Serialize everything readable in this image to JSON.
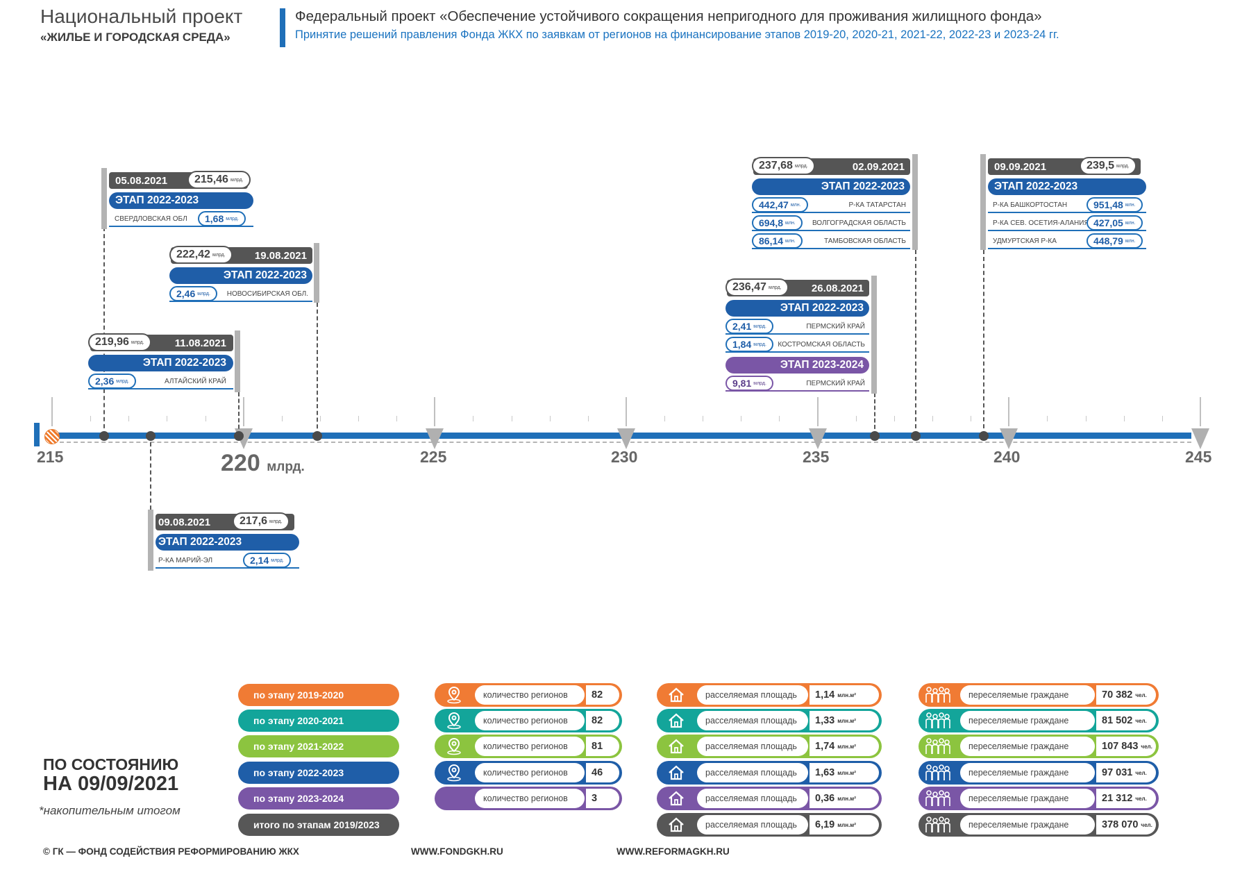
{
  "header": {
    "left_title": "Национальный проект",
    "left_subtitle": "«ЖИЛЬЕ И ГОРОДСКАЯ СРЕДА»",
    "right_title": "Федеральный проект «Обеспечение устойчивого сокращения  непригодного для проживания жилищного фонда»",
    "right_subtitle": "Принятие  решений правления Фонда ЖКХ по заявкам  от регионов на финансирование этапов 2019-20, 2020-21, 2021-22, 2022-23 и 2023-24 гг."
  },
  "axis": {
    "labels": [
      "215",
      "225",
      "230",
      "235",
      "240",
      "245"
    ],
    "big_label_value": "220",
    "big_label_unit": "млрд."
  },
  "events": {
    "e1": {
      "date": "05.08.2021",
      "amount": "215,46",
      "unit": "млрд.",
      "stage": "ЭТАП 2022-2023",
      "rows": [
        {
          "region": "СВЕРДЛОВСКАЯ ОБЛ",
          "value": "1,68",
          "unit": "млрд."
        }
      ]
    },
    "e2": {
      "date": "09.08.2021",
      "amount": "217,6",
      "unit": "млрд.",
      "stage": "ЭТАП 2022-2023",
      "rows": [
        {
          "region": "Р-КА МАРИЙ-ЭЛ",
          "value": "2,14",
          "unit": "млрд."
        }
      ]
    },
    "e3": {
      "date": "11.08.2021",
      "amount": "219,96",
      "unit": "млрд.",
      "stage": "ЭТАП 2022-2023",
      "rows": [
        {
          "region": "АЛТАЙСКИЙ КРАЙ",
          "value": "2,36",
          "unit": "млрд."
        }
      ]
    },
    "e4": {
      "date": "19.08.2021",
      "amount": "222,42",
      "unit": "млрд.",
      "stage": "ЭТАП 2022-2023",
      "rows": [
        {
          "region": "НОВОСИБИРСКАЯ ОБЛ.",
          "value": "2,46",
          "unit": "млрд."
        }
      ]
    },
    "e5": {
      "date": "26.08.2021",
      "amount": "236,47",
      "unit": "млрд.",
      "stage": "ЭТАП 2022-2023",
      "stage2": "ЭТАП 2023-2024",
      "rows": [
        {
          "region": "ПЕРМСКИЙ КРАЙ",
          "value": "2,41",
          "unit": "млрд."
        },
        {
          "region": "КОСТРОМСКАЯ ОБЛАСТЬ",
          "value": "1,84",
          "unit": "млрд."
        }
      ],
      "rows2": [
        {
          "region": "ПЕРМСКИЙ КРАЙ",
          "value": "9,81",
          "unit": "млрд."
        }
      ]
    },
    "e6": {
      "date": "02.09.2021",
      "amount": "237,68",
      "unit": "млрд.",
      "stage": "ЭТАП 2022-2023",
      "rows": [
        {
          "region": "Р-КА ТАТАРСТАН",
          "value": "442,47",
          "unit": "млн."
        },
        {
          "region": "ВОЛГОГРАДСКАЯ ОБЛАСТЬ",
          "value": "694,8",
          "unit": "млн."
        },
        {
          "region": "ТАМБОВСКАЯ ОБЛАСТЬ",
          "value": "86,14",
          "unit": "млн."
        }
      ]
    },
    "e7": {
      "date": "09.09.2021",
      "amount": "239,5",
      "unit": "млрд.",
      "stage": "ЭТАП 2022-2023",
      "rows": [
        {
          "region": "Р-КА БАШКОРТОСТАН",
          "value": "951,48",
          "unit": "млн."
        },
        {
          "region": "Р-КА СЕВ. ОСЕТИЯ-АЛАНИЯ",
          "value": "427,05",
          "unit": "млн."
        },
        {
          "region": "УДМУРТСКАЯ Р-КА",
          "value": "448,79",
          "unit": "млн."
        }
      ]
    }
  },
  "stats": {
    "labels": {
      "regions": "количество регионов",
      "area": "расселяемая площадь",
      "citizens": "переселяемые граждане",
      "area_unit": "млн.м²",
      "people_unit": "чел."
    },
    "colors": [
      "#f07b34",
      "#13a59a",
      "#8cc43f",
      "#1f5ea8",
      "#7a56a6",
      "#575757"
    ],
    "stages": [
      {
        "label": "по этапу 2019-2020",
        "regions": "82",
        "area": "1,14",
        "citizens": "70 382"
      },
      {
        "label": "по этапу 2020-2021",
        "regions": "82",
        "area": "1,33",
        "citizens": "81 502"
      },
      {
        "label": "по этапу 2021-2022",
        "regions": "81",
        "area": "1,74",
        "citizens": "107 843"
      },
      {
        "label": "по этапу 2022-2023",
        "regions": "46",
        "area": "1,63",
        "citizens": "97 031"
      },
      {
        "label": "по этапу 2023-2024",
        "regions": "3",
        "area": "0,36",
        "citizens": "21 312"
      },
      {
        "label": "итого по этапам 2019/2023",
        "area": "6,19",
        "citizens": "378 070"
      }
    ]
  },
  "status": {
    "line1": "ПО СОСТОЯНИЮ",
    "line2": "НА 09/09/2021",
    "note": "*накопительным итогом"
  },
  "footer": {
    "org": "© ГК — ФОНД СОДЕЙСТВИЯ РЕФОРМИРОВАНИЮ ЖКХ",
    "site1": "WWW.FONDGKH.RU",
    "site2": "WWW.REFORMAGKH.RU"
  }
}
